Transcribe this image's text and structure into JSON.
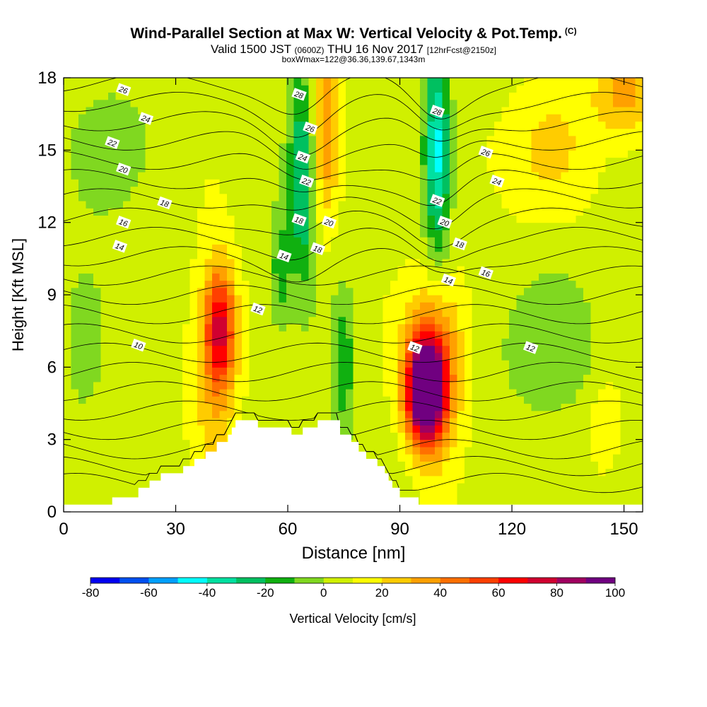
{
  "header": {
    "title": "Wind-Parallel Section at Max W: Vertical Velocity & Pot.Temp.",
    "copyright": "(C)",
    "valid_prefix": "Valid 1500 JST",
    "valid_utc": "(0600Z)",
    "valid_date": "THU 16 Nov 2017",
    "forecast": "[12hrFcst@2150z]",
    "box_info": "boxWmax=122@36.36,139.67,1343m"
  },
  "colors": {
    "scale": [
      "#0000f0",
      "#0050f0",
      "#00a0ff",
      "#00ffff",
      "#00e0a0",
      "#00c060",
      "#10b010",
      "#80d820",
      "#d0f000",
      "#ffff00",
      "#ffcc00",
      "#ffa000",
      "#ff7000",
      "#ff4000",
      "#ff0000",
      "#d00030",
      "#a00060",
      "#700080"
    ],
    "contour": "#000000",
    "terrain": "#ffffff"
  },
  "chart_data": {
    "type": "heatmap",
    "xlabel": "Distance [nm]",
    "ylabel": "Height [Kft MSL]",
    "xlim": [
      0,
      155
    ],
    "ylim": [
      0,
      18
    ],
    "xticks": [
      0,
      30,
      60,
      90,
      120,
      150
    ],
    "yticks": [
      0,
      3,
      6,
      9,
      12,
      15,
      18
    ],
    "colorbar": {
      "label": "Vertical Velocity [cm/s]",
      "ticks": [
        -80,
        -60,
        -40,
        -20,
        0,
        20,
        40,
        60,
        80,
        100
      ],
      "levels": [
        -80,
        -70,
        -60,
        -50,
        -40,
        -30,
        -20,
        -10,
        0,
        10,
        20,
        30,
        40,
        50,
        60,
        70,
        80,
        90,
        100
      ]
    },
    "contour_labels": [
      {
        "text": "26",
        "x": 16,
        "y": 17.5
      },
      {
        "text": "24",
        "x": 22,
        "y": 16.3
      },
      {
        "text": "22",
        "x": 13,
        "y": 15.3
      },
      {
        "text": "20",
        "x": 16,
        "y": 14.2
      },
      {
        "text": "18",
        "x": 27,
        "y": 12.8
      },
      {
        "text": "16",
        "x": 16,
        "y": 12
      },
      {
        "text": "14",
        "x": 15,
        "y": 11
      },
      {
        "text": "12",
        "x": 52,
        "y": 8.4
      },
      {
        "text": "10",
        "x": 20,
        "y": 6.9
      },
      {
        "text": "28",
        "x": 63,
        "y": 17.3
      },
      {
        "text": "26",
        "x": 66,
        "y": 15.9
      },
      {
        "text": "24",
        "x": 64,
        "y": 14.7
      },
      {
        "text": "22",
        "x": 65,
        "y": 13.7
      },
      {
        "text": "18",
        "x": 63,
        "y": 12.1
      },
      {
        "text": "20",
        "x": 71,
        "y": 12
      },
      {
        "text": "18",
        "x": 68,
        "y": 10.9
      },
      {
        "text": "14",
        "x": 59,
        "y": 10.6
      },
      {
        "text": "28",
        "x": 100,
        "y": 16.6
      },
      {
        "text": "26",
        "x": 113,
        "y": 14.9
      },
      {
        "text": "24",
        "x": 116,
        "y": 13.7
      },
      {
        "text": "22",
        "x": 100,
        "y": 12.9
      },
      {
        "text": "20",
        "x": 102,
        "y": 12
      },
      {
        "text": "18",
        "x": 106,
        "y": 11.1
      },
      {
        "text": "16",
        "x": 113,
        "y": 9.9
      },
      {
        "text": "14",
        "x": 103,
        "y": 9.6
      },
      {
        "text": "12",
        "x": 94,
        "y": 6.8
      },
      {
        "text": "12",
        "x": 125,
        "y": 6.8
      }
    ],
    "terrain_profile": [
      [
        0,
        0.3
      ],
      [
        13,
        0.3
      ],
      [
        13,
        0.6
      ],
      [
        20,
        0.6
      ],
      [
        20,
        1.0
      ],
      [
        23,
        1.0
      ],
      [
        23,
        1.3
      ],
      [
        26,
        1.3
      ],
      [
        26,
        1.6
      ],
      [
        32,
        1.6
      ],
      [
        32,
        1.9
      ],
      [
        35,
        1.9
      ],
      [
        35,
        2.2
      ],
      [
        38,
        2.2
      ],
      [
        38,
        2.5
      ],
      [
        41,
        2.5
      ],
      [
        41,
        2.9
      ],
      [
        44,
        2.9
      ],
      [
        44,
        3.2
      ],
      [
        45,
        3.2
      ],
      [
        45,
        3.5
      ],
      [
        46,
        3.5
      ],
      [
        46,
        3.8
      ],
      [
        52,
        3.8
      ],
      [
        52,
        3.5
      ],
      [
        61,
        3.5
      ],
      [
        61,
        3.2
      ],
      [
        64,
        3.2
      ],
      [
        64,
        3.5
      ],
      [
        68,
        3.5
      ],
      [
        68,
        3.8
      ],
      [
        74,
        3.8
      ],
      [
        74,
        3.2
      ],
      [
        77,
        3.2
      ],
      [
        77,
        2.9
      ],
      [
        79,
        2.9
      ],
      [
        79,
        2.5
      ],
      [
        81,
        2.5
      ],
      [
        81,
        2.2
      ],
      [
        84,
        2.2
      ],
      [
        84,
        1.9
      ],
      [
        86,
        1.9
      ],
      [
        86,
        1.6
      ],
      [
        87,
        1.6
      ],
      [
        87,
        1.3
      ],
      [
        88,
        1.3
      ],
      [
        88,
        1.0
      ],
      [
        90,
        1.0
      ],
      [
        90,
        0.6
      ],
      [
        95,
        0.6
      ],
      [
        95,
        0.3
      ],
      [
        155,
        0.3
      ]
    ],
    "w_features": [
      {
        "x": 97,
        "y": 5,
        "sx": 5,
        "sy": 2.2,
        "w": 115
      },
      {
        "x": 100,
        "y": 6.5,
        "sx": 8,
        "sy": 3.5,
        "w": 35
      },
      {
        "x": 42,
        "y": 7.6,
        "sx": 4,
        "sy": 2.5,
        "w": 55
      },
      {
        "x": 40,
        "y": 6,
        "sx": 6,
        "sy": 5,
        "w": 22
      },
      {
        "x": 70,
        "y": 16,
        "sx": 3.5,
        "sy": 4,
        "w": 32
      },
      {
        "x": 150,
        "y": 17.5,
        "sx": 8,
        "sy": 2,
        "w": 30
      },
      {
        "x": 128,
        "y": 15,
        "sx": 15,
        "sy": 3,
        "w": 15
      },
      {
        "x": 100,
        "y": 15,
        "sx": 3.5,
        "sy": 4.5,
        "w": -52
      },
      {
        "x": 64,
        "y": 14,
        "sx": 3.5,
        "sy": 4.5,
        "w": -40
      },
      {
        "x": 58,
        "y": 10,
        "sx": 3,
        "sy": 2.5,
        "w": -22
      },
      {
        "x": 75,
        "y": 6,
        "sx": 3,
        "sy": 3,
        "w": -22
      },
      {
        "x": 128,
        "y": 7,
        "sx": 15,
        "sy": 3,
        "w": -14
      },
      {
        "x": 10,
        "y": 15,
        "sx": 10,
        "sy": 3,
        "w": -14
      },
      {
        "x": 5,
        "y": 7,
        "sx": 5,
        "sy": 3,
        "w": -10
      },
      {
        "x": 145,
        "y": 3.5,
        "sx": 4,
        "sy": 2,
        "w": 14
      }
    ],
    "isentrope_levels": [
      1.2,
      1.9,
      2.6,
      3.4,
      4.2,
      5.0,
      5.8,
      6.6,
      7.4,
      8.2,
      9.0,
      9.8,
      10.6,
      11.4,
      12.2,
      13.0,
      13.8,
      14.6,
      15.4,
      16.2,
      17.0,
      17.8
    ]
  }
}
